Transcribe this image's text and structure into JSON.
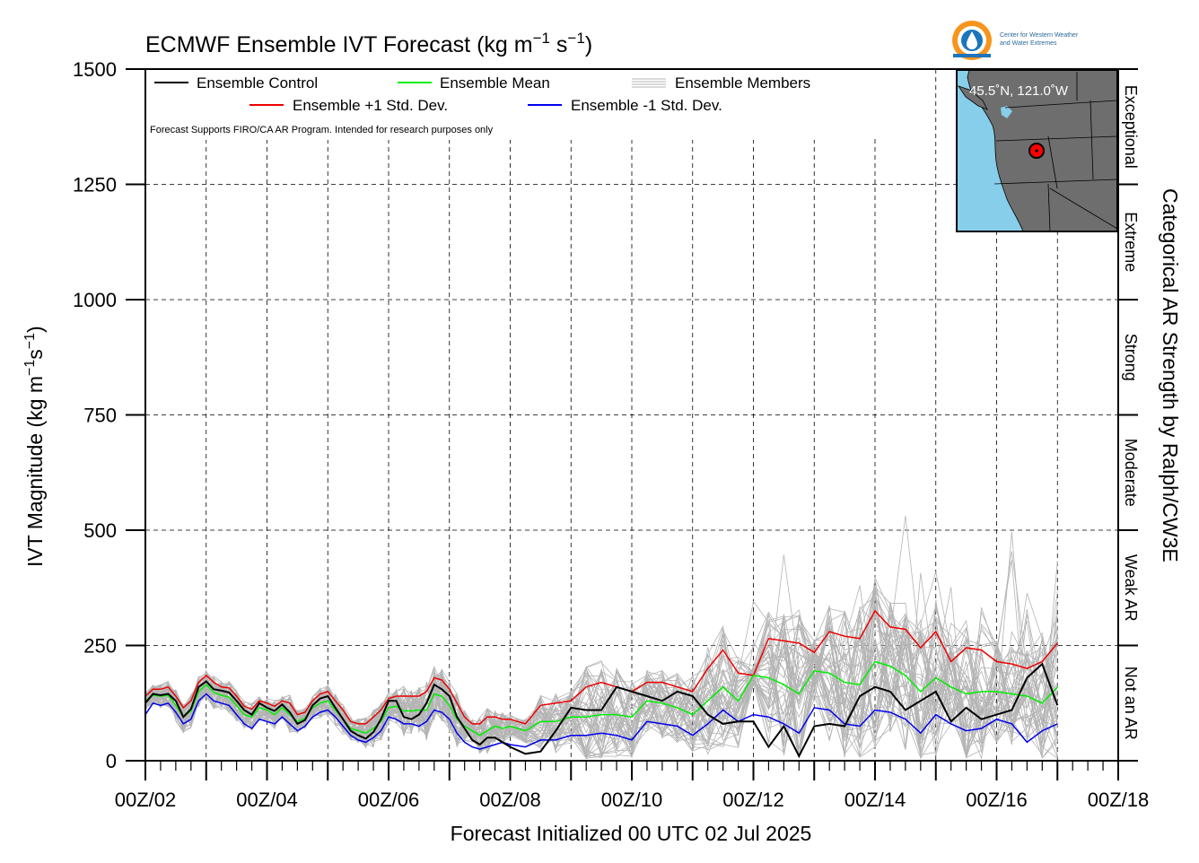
{
  "chart_data": {
    "type": "line",
    "title": "ECMWF Ensemble IVT Forecast (kg m",
    "title_sup1": "−1",
    "title_mid": " s",
    "title_sup2": "−1",
    "title_end": ")",
    "ylabel_main": "IVT Magnitude (kg m",
    "ylabel_sup1": "−1",
    "ylabel_mid": "s",
    "ylabel_sup2": "−1",
    "ylabel_end": ")",
    "xlabel": "Forecast Initialized 00 UTC 02 Jul 2025",
    "right_label": "Categorical AR Strength by Ralph/CW3E",
    "note": "Forecast Supports FIRO/CA AR Program. Intended for research purposes only",
    "x_unit": "forecast day (July 2025, 00Z)",
    "xlim": [
      2,
      18
    ],
    "ylim": [
      0,
      1500
    ],
    "y_ticks": [
      0,
      250,
      500,
      750,
      1000,
      1250,
      1500
    ],
    "y_tick_labels": [
      "0",
      "250",
      "500",
      "750",
      "1000",
      "1250",
      "1500"
    ],
    "x_ticks": [
      2,
      4,
      6,
      8,
      10,
      12,
      14,
      16,
      18
    ],
    "x_tick_labels": [
      "00Z/02",
      "00Z/04",
      "00Z/06",
      "00Z/08",
      "00Z/10",
      "00Z/12",
      "00Z/14",
      "00Z/16",
      "00Z/18"
    ],
    "categories": [
      {
        "name": "Not an AR",
        "range": [
          0,
          250
        ]
      },
      {
        "name": "Weak AR",
        "range": [
          250,
          500
        ]
      },
      {
        "name": "Moderate",
        "range": [
          500,
          750
        ]
      },
      {
        "name": "Strong",
        "range": [
          750,
          1000
        ]
      },
      {
        "name": "Extreme",
        "range": [
          1000,
          1250
        ]
      },
      {
        "name": "Exceptional",
        "range": [
          1250,
          1500
        ]
      }
    ],
    "grid": true,
    "legend_position": "top-left",
    "x": [
      2.0,
      2.125,
      2.25,
      2.375,
      2.5,
      2.625,
      2.75,
      2.875,
      3.0,
      3.125,
      3.25,
      3.375,
      3.5,
      3.625,
      3.75,
      3.875,
      4.0,
      4.125,
      4.25,
      4.375,
      4.5,
      4.625,
      4.75,
      4.875,
      5.0,
      5.125,
      5.25,
      5.375,
      5.5,
      5.625,
      5.75,
      5.875,
      6.0,
      6.125,
      6.25,
      6.375,
      6.5,
      6.625,
      6.75,
      6.875,
      7.0,
      7.125,
      7.25,
      7.375,
      7.5,
      7.625,
      7.75,
      7.875,
      8.0,
      8.25,
      8.5,
      8.75,
      9.0,
      9.25,
      9.5,
      9.75,
      10.0,
      10.25,
      10.5,
      10.75,
      11.0,
      11.25,
      11.5,
      11.75,
      12.0,
      12.25,
      12.5,
      12.75,
      13.0,
      13.25,
      13.5,
      13.75,
      14.0,
      14.25,
      14.5,
      14.75,
      15.0,
      15.25,
      15.5,
      15.75,
      16.0,
      16.25,
      16.5,
      16.75,
      17.0
    ],
    "series": [
      {
        "name": "Ensemble Control",
        "color": "#000000",
        "values": [
          125,
          145,
          142,
          145,
          130,
          95,
          112,
          160,
          172,
          155,
          152,
          148,
          130,
          110,
          100,
          125,
          115,
          108,
          122,
          105,
          80,
          88,
          120,
          135,
          140,
          115,
          90,
          65,
          55,
          48,
          62,
          90,
          130,
          130,
          95,
          90,
          100,
          125,
          165,
          155,
          140,
          95,
          70,
          45,
          35,
          50,
          50,
          40,
          30,
          15,
          20,
          65,
          115,
          110,
          110,
          160,
          150,
          140,
          130,
          150,
          140,
          100,
          80,
          85,
          85,
          30,
          75,
          10,
          75,
          80,
          75,
          140,
          160,
          150,
          110,
          130,
          150,
          85,
          115,
          90,
          100,
          110,
          180,
          210,
          120
        ]
      },
      {
        "name": "Ensemble Mean",
        "color": "#00ee00",
        "values": [
          130,
          142,
          140,
          142,
          120,
          95,
          108,
          150,
          165,
          148,
          142,
          138,
          120,
          100,
          95,
          115,
          110,
          100,
          115,
          100,
          85,
          92,
          115,
          125,
          130,
          110,
          90,
          70,
          65,
          60,
          70,
          85,
          115,
          118,
          108,
          108,
          110,
          110,
          145,
          140,
          120,
          90,
          75,
          65,
          55,
          65,
          75,
          70,
          75,
          65,
          85,
          85,
          95,
          95,
          100,
          100,
          95,
          130,
          125,
          115,
          100,
          130,
          160,
          130,
          185,
          180,
          165,
          145,
          195,
          190,
          170,
          165,
          215,
          205,
          185,
          150,
          180,
          160,
          145,
          150,
          150,
          145,
          140,
          125,
          160
        ]
      },
      {
        "name": "Ensemble +1 Std. Dev.",
        "color": "#ee0000",
        "values": [
          140,
          155,
          155,
          160,
          140,
          115,
          130,
          170,
          185,
          170,
          160,
          158,
          140,
          118,
          112,
          130,
          125,
          118,
          130,
          125,
          100,
          105,
          130,
          145,
          150,
          130,
          110,
          85,
          80,
          80,
          95,
          110,
          135,
          140,
          140,
          140,
          140,
          150,
          180,
          175,
          155,
          125,
          95,
          80,
          80,
          95,
          95,
          90,
          90,
          80,
          120,
          125,
          130,
          160,
          170,
          160,
          150,
          170,
          170,
          160,
          150,
          200,
          240,
          190,
          185,
          265,
          260,
          255,
          235,
          280,
          270,
          265,
          325,
          290,
          285,
          245,
          280,
          215,
          245,
          240,
          215,
          210,
          200,
          215,
          255
        ]
      },
      {
        "name": "Ensemble -1 Std. Dev.",
        "color": "#0000ee",
        "values": [
          100,
          125,
          120,
          125,
          105,
          80,
          90,
          130,
          145,
          130,
          125,
          120,
          100,
          80,
          70,
          90,
          85,
          80,
          95,
          80,
          65,
          75,
          95,
          105,
          110,
          95,
          75,
          55,
          45,
          40,
          50,
          65,
          95,
          90,
          80,
          80,
          75,
          85,
          110,
          105,
          90,
          60,
          40,
          30,
          25,
          30,
          35,
          40,
          35,
          30,
          45,
          45,
          55,
          55,
          60,
          55,
          45,
          85,
          80,
          75,
          55,
          80,
          110,
          85,
          100,
          95,
          80,
          60,
          115,
          110,
          80,
          75,
          110,
          105,
          90,
          60,
          100,
          80,
          65,
          70,
          90,
          80,
          40,
          65,
          80
        ]
      }
    ],
    "members_label": "Ensemble Members",
    "members_color": "#b4b4b4",
    "members_count": 50
  },
  "legend": {
    "control": "Ensemble Control",
    "mean": "Ensemble Mean",
    "members": "Ensemble Members",
    "plus": "Ensemble +1 Std. Dev.",
    "minus": "Ensemble -1 Std. Dev."
  },
  "inset_map": {
    "location_label": "45.5˚N, 121.0˚W",
    "lat": 45.5,
    "lon": -121.0,
    "ocean_color": "#87ceeb",
    "land_color": "#6e6e6e",
    "marker_color": "#ff0000"
  },
  "logo": {
    "line1": "Center for Western Weather",
    "line2": "and Water Extremes",
    "ring_color": "#f7941d",
    "inner_color": "#1c75bc"
  }
}
